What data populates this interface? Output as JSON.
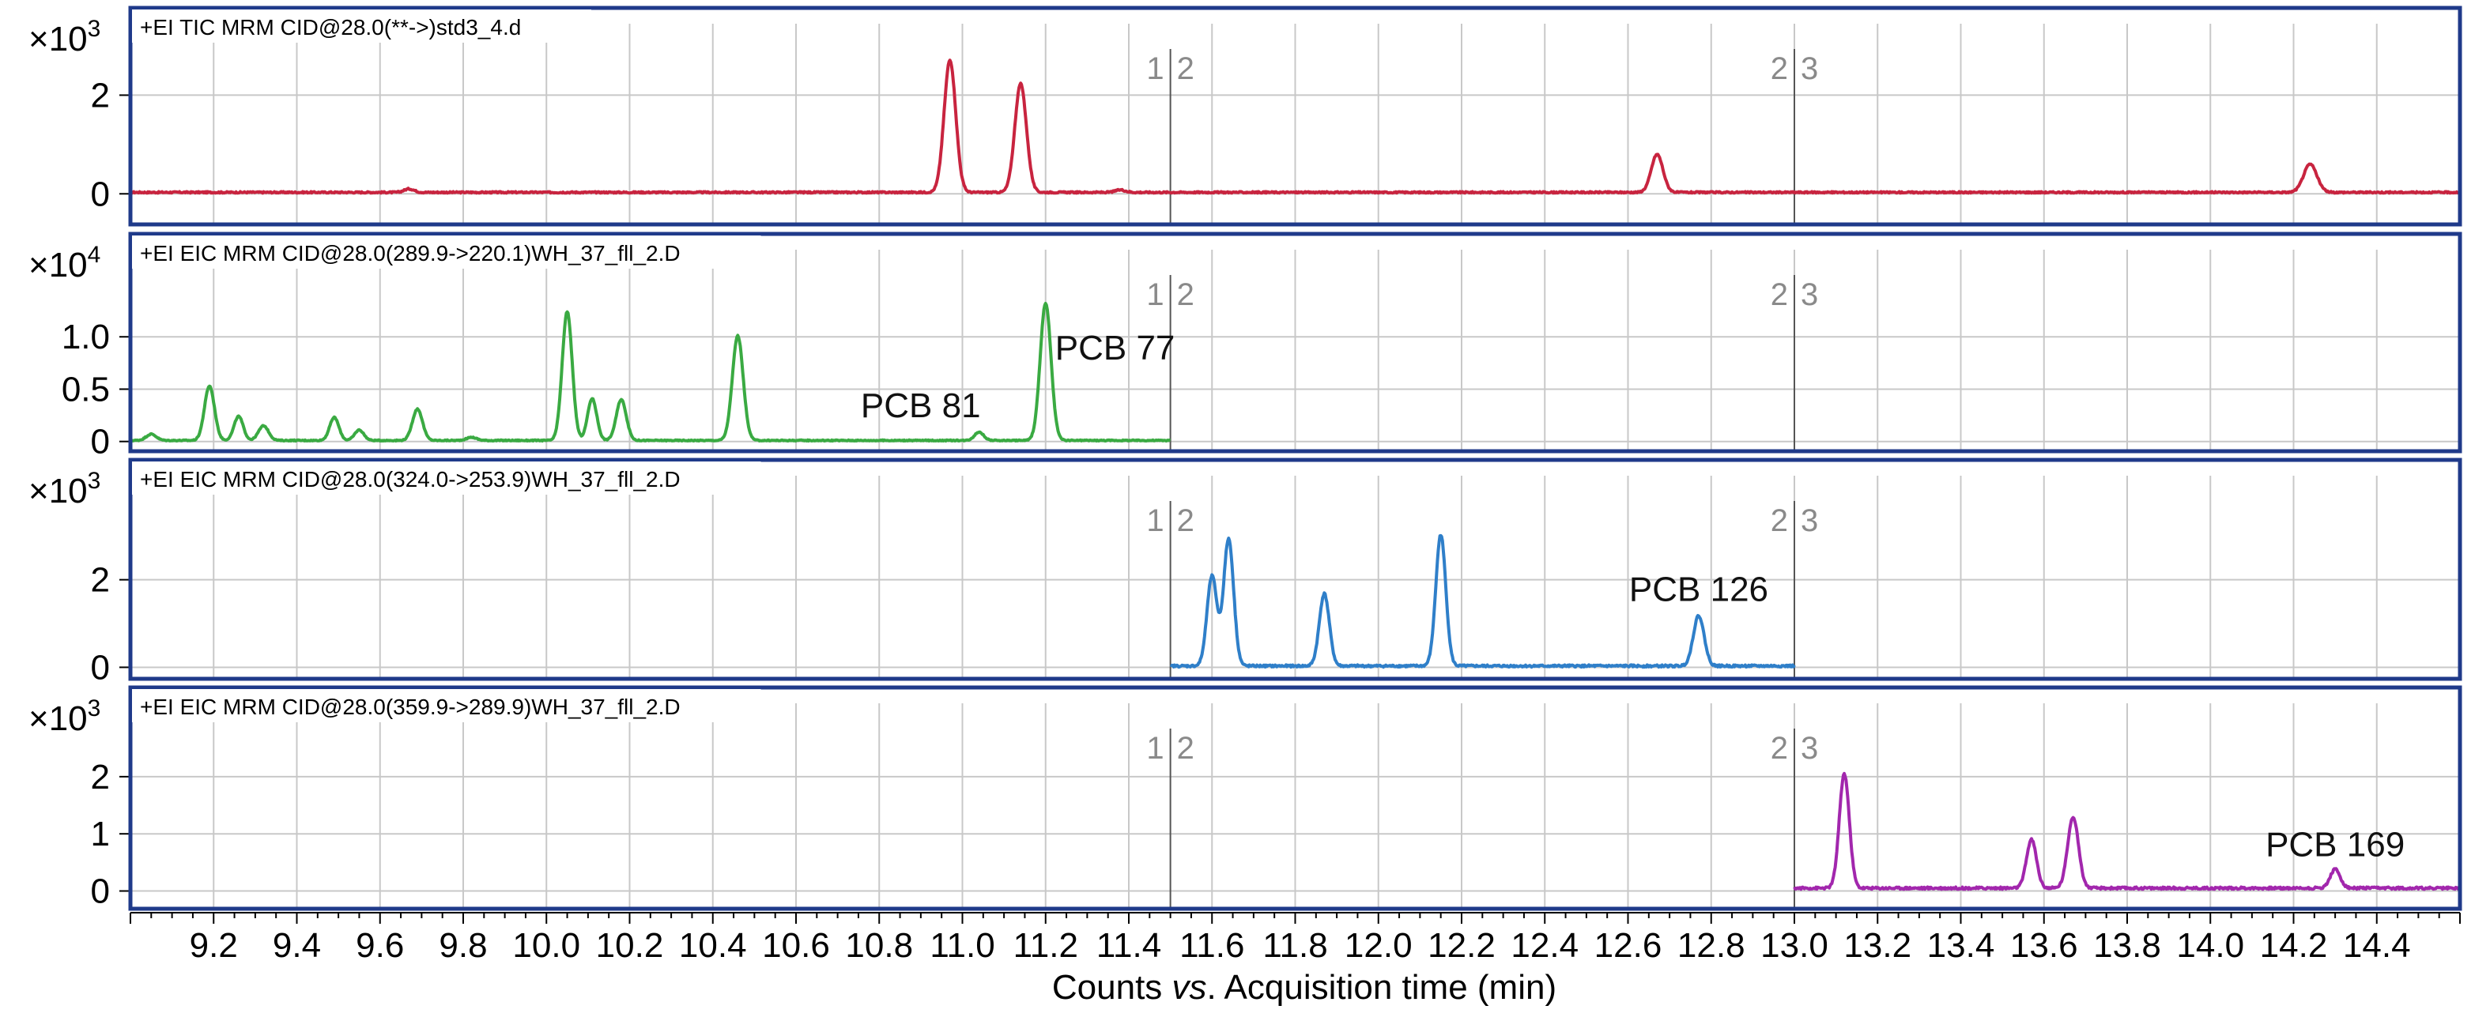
{
  "chart_data": {
    "type": "line",
    "xlabel_parts": {
      "pre": "Counts ",
      "em": "vs",
      "post": ". Acquisition time (min)"
    },
    "xlim": [
      9.0,
      14.6
    ],
    "x_ticks": [
      "9.2",
      "9.4",
      "9.6",
      "9.8",
      "10.0",
      "10.2",
      "10.4",
      "10.6",
      "10.8",
      "11.0",
      "11.2",
      "11.4",
      "11.6",
      "11.8",
      "12.0",
      "12.2",
      "12.4",
      "12.6",
      "12.8",
      "13.0",
      "13.2",
      "13.4",
      "13.6",
      "13.8",
      "14.0",
      "14.2",
      "14.4"
    ],
    "segment_boundaries": [
      {
        "x": 11.5,
        "left_label": "1",
        "right_label": "2"
      },
      {
        "x": 13.0,
        "left_label": "2",
        "right_label": "3"
      }
    ],
    "panels": [
      {
        "title": "+EI TIC MRM CID@28.0(**->)std3_4.d",
        "exponent_label": "×10",
        "exponent": "3",
        "color": "#c8243f",
        "ylim": [
          -0.3,
          3.0
        ],
        "y_ticks": [
          {
            "value": 0,
            "label": "0"
          },
          {
            "value": 2,
            "label": "2"
          }
        ],
        "x_range": [
          9.0,
          14.6
        ],
        "baseline": 0.03,
        "noise": 0.03,
        "peaks": [
          {
            "x": 9.67,
            "h": 0.07,
            "w": 0.012
          },
          {
            "x": 10.97,
            "h": 2.68,
            "w": 0.014
          },
          {
            "x": 11.14,
            "h": 2.2,
            "w": 0.014
          },
          {
            "x": 11.38,
            "h": 0.05,
            "w": 0.012
          },
          {
            "x": 12.67,
            "h": 0.77,
            "w": 0.014
          },
          {
            "x": 14.24,
            "h": 0.57,
            "w": 0.016
          }
        ],
        "labels": []
      },
      {
        "title": "+EI EIC MRM CID@28.0(289.9->220.1)WH_37_fll_2.D",
        "exponent_label": "×10",
        "exponent": "4",
        "color": "#3aaa42",
        "ylim": [
          -0.04,
          1.5
        ],
        "y_ticks": [
          {
            "value": 0,
            "label": "0"
          },
          {
            "value": 0.5,
            "label": "0.5"
          },
          {
            "value": 1.0,
            "label": "1.0"
          }
        ],
        "x_range": [
          9.0,
          11.5
        ],
        "baseline": 0.01,
        "noise": 0.01,
        "peaks": [
          {
            "x": 9.05,
            "h": 0.06,
            "w": 0.012
          },
          {
            "x": 9.19,
            "h": 0.52,
            "w": 0.012
          },
          {
            "x": 9.26,
            "h": 0.23,
            "w": 0.011
          },
          {
            "x": 9.32,
            "h": 0.14,
            "w": 0.012
          },
          {
            "x": 9.49,
            "h": 0.22,
            "w": 0.011
          },
          {
            "x": 9.55,
            "h": 0.1,
            "w": 0.011
          },
          {
            "x": 9.69,
            "h": 0.3,
            "w": 0.012
          },
          {
            "x": 9.82,
            "h": 0.03,
            "w": 0.012
          },
          {
            "x": 10.05,
            "h": 1.23,
            "w": 0.012
          },
          {
            "x": 10.11,
            "h": 0.4,
            "w": 0.011
          },
          {
            "x": 10.18,
            "h": 0.39,
            "w": 0.012
          },
          {
            "x": 10.46,
            "h": 1.0,
            "w": 0.013
          },
          {
            "x": 11.04,
            "h": 0.08,
            "w": 0.011
          },
          {
            "x": 11.2,
            "h": 1.31,
            "w": 0.013
          }
        ],
        "labels": [
          {
            "text": "PCB 81",
            "x": 11.04
          },
          {
            "text": "PCB 77",
            "x": 11.2
          }
        ]
      },
      {
        "title": "+EI EIC MRM CID@28.0(324.0->253.9)WH_37_fll_2.D",
        "exponent_label": "×10",
        "exponent": "3",
        "color": "#2f7fc9",
        "ylim": [
          -0.1,
          3.6
        ],
        "y_ticks": [
          {
            "value": 0,
            "label": "0"
          },
          {
            "value": 2,
            "label": "2"
          }
        ],
        "x_range": [
          11.5,
          13.0
        ],
        "baseline": 0.03,
        "noise": 0.05,
        "peaks": [
          {
            "x": 11.6,
            "h": 2.05,
            "w": 0.012
          },
          {
            "x": 11.64,
            "h": 2.9,
            "w": 0.012
          },
          {
            "x": 11.87,
            "h": 1.65,
            "w": 0.012
          },
          {
            "x": 12.15,
            "h": 3.0,
            "w": 0.012
          },
          {
            "x": 12.77,
            "h": 1.15,
            "w": 0.013
          }
        ],
        "labels": [
          {
            "text": "PCB 126",
            "x": 12.77
          }
        ]
      },
      {
        "title": "+EI EIC MRM CID@28.0(359.9->289.9)WH_37_fll_2.D",
        "exponent_label": "×10",
        "exponent": "3",
        "color": "#a227ad",
        "ylim": [
          -0.2,
          2.8
        ],
        "y_ticks": [
          {
            "value": 0,
            "label": "0"
          },
          {
            "value": 1,
            "label": "1"
          },
          {
            "value": 2,
            "label": "2"
          }
        ],
        "x_range": [
          13.0,
          14.6
        ],
        "baseline": 0.05,
        "noise": 0.04,
        "peaks": [
          {
            "x": 13.12,
            "h": 2.0,
            "w": 0.012
          },
          {
            "x": 13.57,
            "h": 0.85,
            "w": 0.012
          },
          {
            "x": 13.67,
            "h": 1.25,
            "w": 0.013
          },
          {
            "x": 14.3,
            "h": 0.33,
            "w": 0.012
          }
        ],
        "labels": [
          {
            "text": "PCB 169",
            "x": 14.3
          }
        ]
      }
    ]
  }
}
